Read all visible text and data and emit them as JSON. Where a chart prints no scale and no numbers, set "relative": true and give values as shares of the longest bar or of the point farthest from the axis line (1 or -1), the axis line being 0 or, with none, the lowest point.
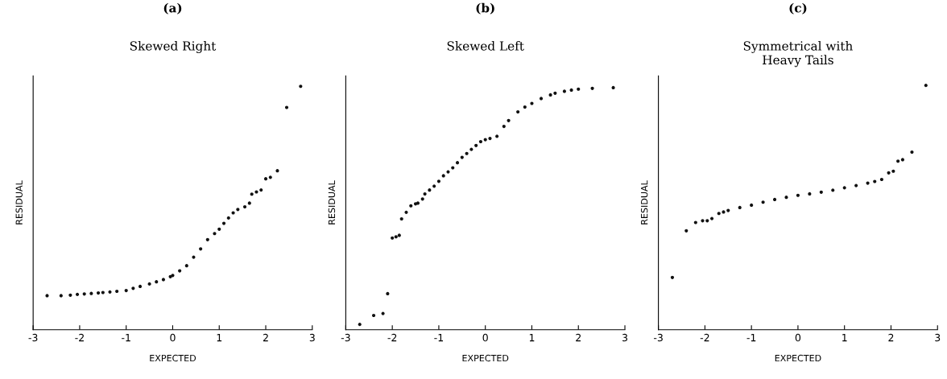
{
  "chart_data": [
    {
      "type": "scatter",
      "title": "(a)",
      "subtitle": "Skewed Right",
      "xlabel": "EXPECTED",
      "ylabel": "RESIDUAL",
      "relative": true,
      "xlim": [
        -3,
        3
      ],
      "xticks": [
        -3,
        -2,
        -1,
        0,
        1,
        2,
        3
      ],
      "tick_labels": "x",
      "marker": "circle",
      "grid": false,
      "series": [
        {
          "color": "#111111",
          "x": [
            -2.7,
            -2.4,
            -2.2,
            -2.05,
            -1.9,
            -1.75,
            -1.6,
            -1.5,
            -1.35,
            -1.2,
            -1,
            -0.85,
            -0.7,
            -0.5,
            -0.35,
            -0.2,
            -0.05,
            0,
            0.15,
            0.3,
            0.45,
            0.6,
            0.75,
            0.9,
            1,
            1.1,
            1.2,
            1.3,
            1.4,
            1.55,
            1.65,
            1.7,
            1.8,
            1.9,
            2.0,
            2.1,
            2.25,
            2.45,
            2.75
          ],
          "values": [
            0.14,
            0.14,
            0.142,
            0.145,
            0.147,
            0.149,
            0.151,
            0.153,
            0.155,
            0.158,
            0.161,
            0.17,
            0.178,
            0.188,
            0.197,
            0.206,
            0.218,
            0.223,
            0.242,
            0.263,
            0.298,
            0.332,
            0.37,
            0.395,
            0.413,
            0.437,
            0.459,
            0.48,
            0.494,
            0.505,
            0.52,
            0.557,
            0.566,
            0.574,
            0.62,
            0.626,
            0.653,
            0.913,
            1.0
          ]
        }
      ]
    },
    {
      "type": "scatter",
      "title": "(b)",
      "subtitle": "Skewed Left",
      "xlabel": "EXPECTED",
      "ylabel": "RESIDUAL",
      "relative": true,
      "xlim": [
        -3,
        3
      ],
      "xticks": [
        -3,
        -2,
        -1,
        0,
        1,
        2,
        3
      ],
      "tick_labels": "x",
      "marker": "circle",
      "grid": false,
      "series": [
        {
          "color": "#111111",
          "x": [
            -2.7,
            -2.4,
            -2.2,
            -2.1,
            -2.0,
            -1.92,
            -1.85,
            -1.8,
            -1.7,
            -1.6,
            -1.5,
            -1.45,
            -1.35,
            -1.3,
            -1.2,
            -1.1,
            -1,
            -0.9,
            -0.8,
            -0.7,
            -0.6,
            -0.5,
            -0.4,
            -0.3,
            -0.2,
            -0.1,
            0,
            0.1,
            0.25,
            0.4,
            0.5,
            0.7,
            0.85,
            1,
            1.2,
            1.4,
            1.5,
            1.7,
            1.85,
            2,
            2.3,
            2.75
          ],
          "values": [
            0.022,
            0.059,
            0.067,
            0.149,
            0.379,
            0.384,
            0.39,
            0.458,
            0.485,
            0.512,
            0.52,
            0.523,
            0.54,
            0.561,
            0.577,
            0.593,
            0.613,
            0.636,
            0.652,
            0.669,
            0.69,
            0.712,
            0.728,
            0.745,
            0.761,
            0.777,
            0.785,
            0.79,
            0.799,
            0.84,
            0.864,
            0.9,
            0.92,
            0.935,
            0.955,
            0.97,
            0.977,
            0.985,
            0.99,
            0.994,
            0.997,
            1.0
          ]
        }
      ]
    },
    {
      "type": "scatter",
      "title": "(c)",
      "subtitle": "Symmetrical with\nHeavy Tails",
      "xlabel": "EXPECTED",
      "ylabel": "RESIDUAL",
      "relative": true,
      "xlim": [
        -3,
        3
      ],
      "xticks": [
        -3,
        -2,
        -1,
        0,
        1,
        2,
        3
      ],
      "tick_labels": "x",
      "marker": "circle",
      "grid": false,
      "series": [
        {
          "color": "#111111",
          "x": [
            -2.7,
            -2.4,
            -2.2,
            -2.05,
            -1.95,
            -1.85,
            -1.7,
            -1.6,
            -1.5,
            -1.25,
            -1,
            -0.75,
            -0.5,
            -0.25,
            0,
            0.25,
            0.5,
            0.75,
            1,
            1.25,
            1.5,
            1.65,
            1.8,
            1.95,
            2.05,
            2.15,
            2.25,
            2.45,
            2.75
          ],
          "values": [
            0.214,
            0.405,
            0.439,
            0.446,
            0.446,
            0.455,
            0.476,
            0.482,
            0.488,
            0.5,
            0.51,
            0.522,
            0.533,
            0.542,
            0.55,
            0.556,
            0.563,
            0.571,
            0.581,
            0.59,
            0.6,
            0.607,
            0.615,
            0.642,
            0.649,
            0.69,
            0.696,
            0.727,
            1.0
          ]
        }
      ]
    }
  ]
}
